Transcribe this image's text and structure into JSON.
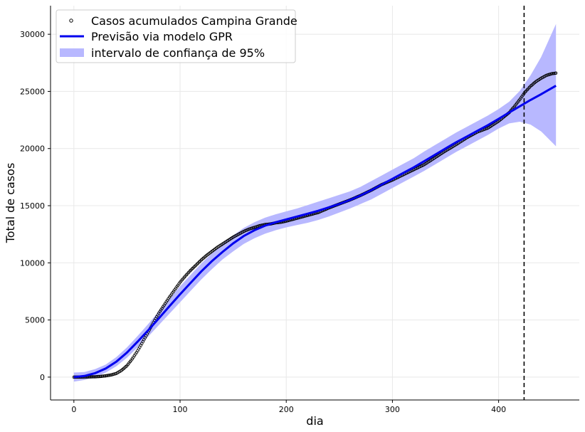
{
  "chart_data": {
    "type": "line",
    "title": "",
    "xlabel": "dia",
    "ylabel": "Total de casos",
    "xlim": [
      -22,
      476
    ],
    "ylim": [
      -2000,
      32500
    ],
    "xticks": [
      0,
      100,
      200,
      300,
      400
    ],
    "yticks": [
      0,
      5000,
      10000,
      15000,
      20000,
      25000,
      30000
    ],
    "grid": true,
    "legend_position": "top-left",
    "vline": {
      "x": 424,
      "style": "dashed",
      "color": "#000000"
    },
    "colors": {
      "observed": "#000000",
      "prediction": "#0000ee",
      "interval": "#b8b8ff",
      "grid": "#e8e8e8"
    },
    "series": [
      {
        "name": "Casos acumulados Campina Grande",
        "kind": "scatter-hollow",
        "x": [
          0,
          10,
          20,
          25,
          30,
          35,
          40,
          45,
          50,
          55,
          60,
          65,
          70,
          75,
          80,
          85,
          90,
          95,
          100,
          105,
          110,
          115,
          120,
          125,
          130,
          135,
          140,
          145,
          150,
          155,
          160,
          165,
          170,
          175,
          180,
          185,
          190,
          195,
          200,
          210,
          220,
          230,
          240,
          250,
          260,
          270,
          280,
          290,
          300,
          310,
          320,
          330,
          340,
          350,
          360,
          370,
          380,
          390,
          400,
          410,
          415,
          420,
          425,
          430,
          435,
          440,
          445,
          450,
          454
        ],
        "y": [
          0,
          10,
          30,
          60,
          110,
          190,
          320,
          600,
          1000,
          1600,
          2300,
          3100,
          3950,
          4800,
          5600,
          6300,
          7000,
          7650,
          8300,
          8850,
          9350,
          9800,
          10250,
          10650,
          11000,
          11350,
          11650,
          11950,
          12250,
          12500,
          12750,
          12950,
          13100,
          13250,
          13350,
          13400,
          13500,
          13550,
          13650,
          13900,
          14150,
          14400,
          14800,
          15150,
          15500,
          15900,
          16350,
          16850,
          17250,
          17700,
          18150,
          18600,
          19200,
          19800,
          20350,
          20950,
          21450,
          21800,
          22400,
          23150,
          23700,
          24300,
          24950,
          25450,
          25850,
          26150,
          26400,
          26550,
          26600
        ]
      },
      {
        "name": "Previsão via modelo GPR",
        "kind": "line",
        "x": [
          0,
          10,
          20,
          30,
          40,
          50,
          60,
          70,
          80,
          90,
          100,
          110,
          120,
          130,
          140,
          150,
          160,
          170,
          180,
          190,
          200,
          210,
          220,
          230,
          240,
          250,
          260,
          270,
          280,
          290,
          300,
          310,
          320,
          330,
          340,
          350,
          360,
          370,
          380,
          390,
          400,
          410,
          420,
          430,
          440,
          454
        ],
        "y": [
          0,
          100,
          350,
          750,
          1350,
          2150,
          3100,
          4100,
          5150,
          6200,
          7250,
          8250,
          9250,
          10150,
          10950,
          11700,
          12350,
          12850,
          13250,
          13550,
          13800,
          14050,
          14300,
          14550,
          14850,
          15150,
          15500,
          15900,
          16350,
          16850,
          17350,
          17850,
          18350,
          18900,
          19450,
          20000,
          20550,
          21050,
          21550,
          22050,
          22600,
          23150,
          23700,
          24250,
          24750,
          25500
        ]
      },
      {
        "name": "intervalo de confiança de 95%",
        "kind": "band",
        "x": [
          0,
          10,
          20,
          30,
          40,
          50,
          60,
          70,
          80,
          90,
          100,
          110,
          120,
          130,
          140,
          150,
          160,
          170,
          180,
          190,
          200,
          210,
          220,
          230,
          240,
          250,
          260,
          270,
          280,
          290,
          300,
          310,
          320,
          330,
          340,
          350,
          360,
          370,
          380,
          390,
          400,
          410,
          420,
          430,
          440,
          454
        ],
        "lower": [
          -400,
          -250,
          0,
          400,
          950,
          1700,
          2600,
          3550,
          4550,
          5550,
          6550,
          7550,
          8550,
          9450,
          10300,
          11000,
          11650,
          12150,
          12550,
          12850,
          13100,
          13300,
          13500,
          13750,
          14050,
          14400,
          14750,
          15150,
          15550,
          16050,
          16550,
          17050,
          17550,
          18050,
          18600,
          19150,
          19700,
          20200,
          20700,
          21200,
          21750,
          22200,
          22350,
          22100,
          21500,
          20200
        ],
        "upper": [
          400,
          450,
          700,
          1100,
          1750,
          2600,
          3600,
          4650,
          5750,
          6850,
          7950,
          8950,
          9950,
          10850,
          11650,
          12400,
          13050,
          13550,
          13950,
          14250,
          14500,
          14750,
          15050,
          15350,
          15650,
          15950,
          16250,
          16650,
          17150,
          17650,
          18150,
          18650,
          19150,
          19750,
          20300,
          20850,
          21400,
          21900,
          22400,
          22900,
          23450,
          24100,
          25050,
          26400,
          28000,
          30900
        ]
      }
    ]
  }
}
